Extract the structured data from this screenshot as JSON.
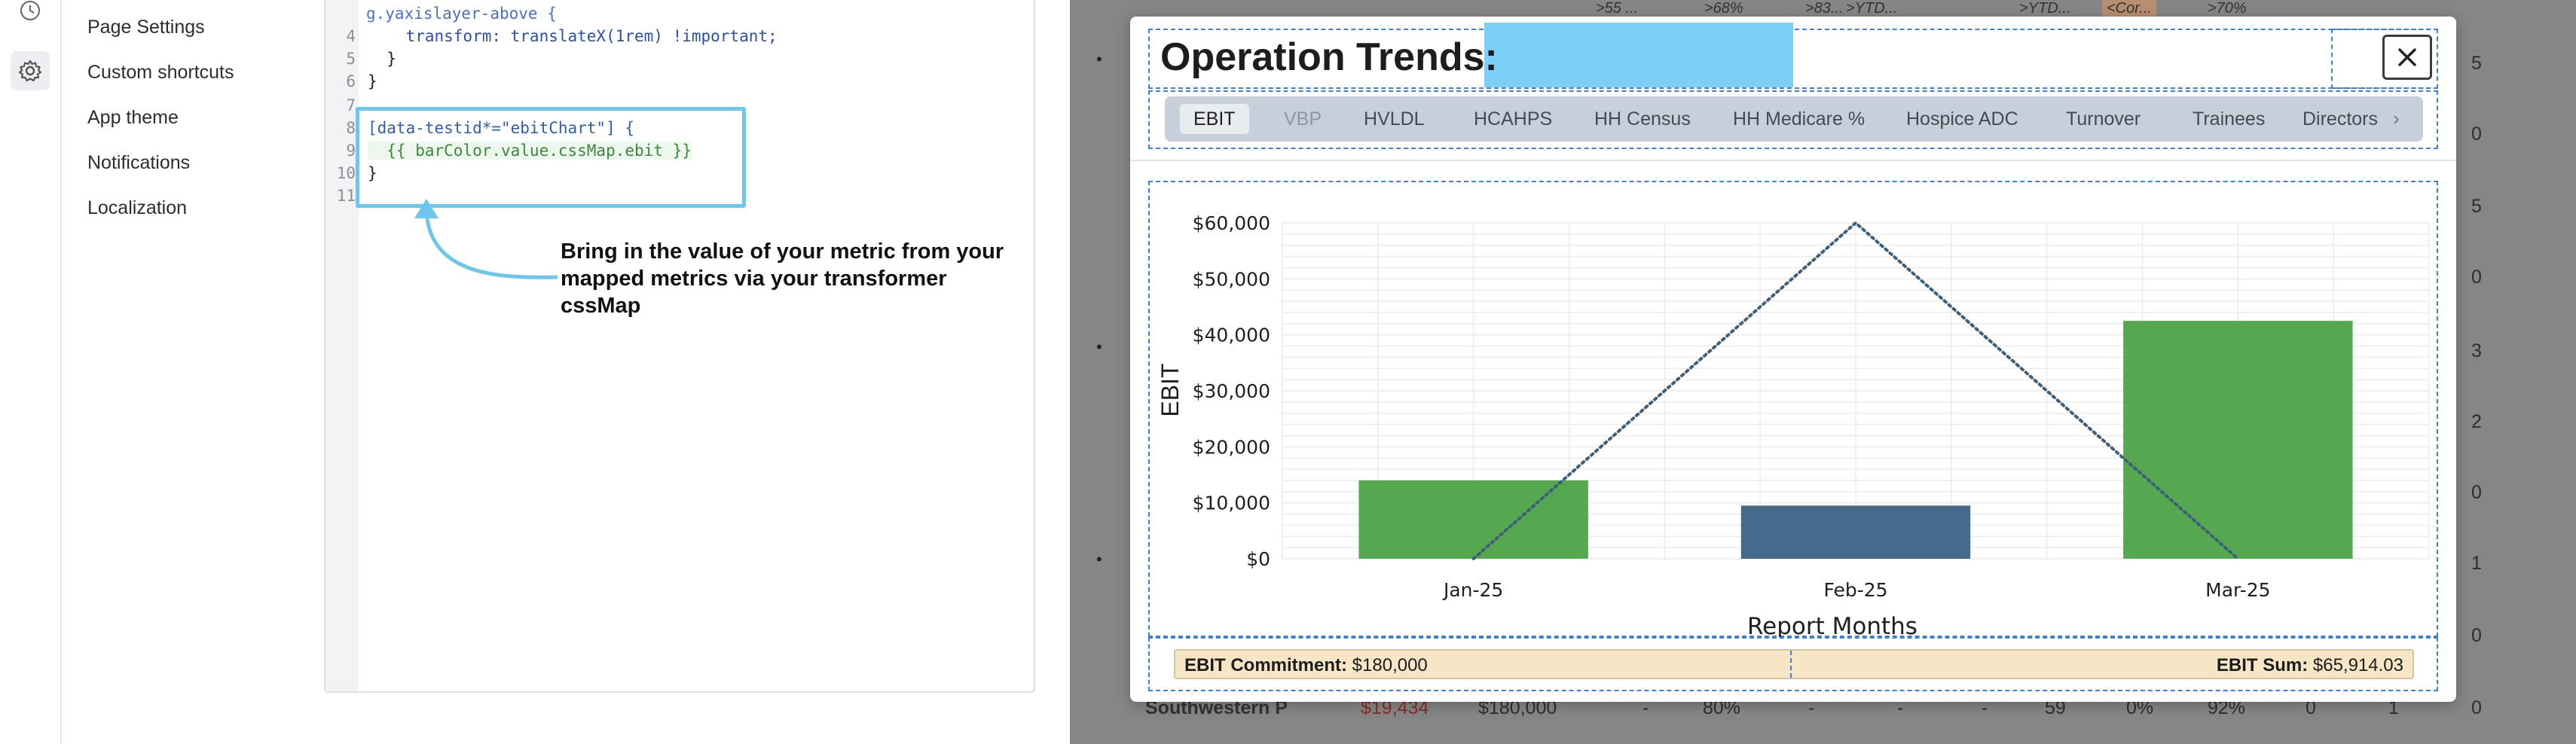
{
  "settings_nav": {
    "items": [
      "Page Settings",
      "Custom shortcuts",
      "App theme",
      "Notifications",
      "Localization"
    ]
  },
  "code_editor": {
    "lines": [
      {
        "n": "",
        "text": "g.yaxislayer-above {"
      },
      {
        "n": "4",
        "text": "    transform: translateX(1rem) !important;"
      },
      {
        "n": "5",
        "text": "  }"
      },
      {
        "n": "6",
        "text": "}"
      },
      {
        "n": "7",
        "text": ""
      },
      {
        "n": "8",
        "text": "[data-testid*=\"ebitChart\"] {"
      },
      {
        "n": "9",
        "text": "  {{ barColor.value.cssMap.ebit }}"
      },
      {
        "n": "10",
        "text": "}"
      },
      {
        "n": "11",
        "text": ""
      }
    ]
  },
  "annotation": {
    "text": "Bring in the value of your metric from your mapped metrics via your transformer cssMap"
  },
  "background_table": {
    "header_fragments": [
      ">55 ...",
      ">68%",
      ">83...",
      ">YTD...",
      ">YTD...",
      "<Cor...",
      ">70%"
    ],
    "row_counts": [
      "5",
      "0",
      "5",
      "0",
      "3",
      "2",
      "0",
      "1",
      "0",
      "0"
    ],
    "last_row": {
      "name": "Southwestern P",
      "v1": "$19,434",
      "v2": "$180,000",
      "v3": "-",
      "v4": "80%",
      "v5": "-",
      "v6": "-",
      "v7": "-",
      "v8": "59",
      "v9": "0%",
      "v10": "92%",
      "v11": "0",
      "v12": "1"
    }
  },
  "modal": {
    "title": "Operation Trends:",
    "close_icon": "close-icon",
    "tabs": [
      {
        "label": "EBIT",
        "state": "active"
      },
      {
        "label": "VBP",
        "state": "disabled"
      },
      {
        "label": "HVLDL",
        "state": "normal"
      },
      {
        "label": "HCAHPS",
        "state": "normal"
      },
      {
        "label": "HH Census",
        "state": "normal"
      },
      {
        "label": "HH Medicare %",
        "state": "normal"
      },
      {
        "label": "Hospice ADC",
        "state": "normal"
      },
      {
        "label": "Turnover",
        "state": "normal"
      },
      {
        "label": "Trainees",
        "state": "normal"
      },
      {
        "label": "Directors",
        "state": "normal"
      }
    ],
    "tab_next_glyph": "›",
    "footer": {
      "commitment_label": "EBIT Commitment:",
      "commitment_value": "$180,000",
      "sum_label": "EBIT Sum:",
      "sum_value": "$65,914.03"
    }
  },
  "chart_data": {
    "type": "bar",
    "categories": [
      "Jan-25",
      "Feb-25",
      "Mar-25"
    ],
    "series": [
      {
        "type": "bar",
        "values": [
          14000,
          9500,
          42500
        ],
        "colors": [
          "#55a84f",
          "#466b8a",
          "#55a84f"
        ]
      },
      {
        "type": "line",
        "style": "dotted",
        "color": "#3e5f7c",
        "values": [
          0,
          60000,
          0
        ]
      }
    ],
    "xlabel": "Report Months",
    "ylabel": "EBIT",
    "ylim": [
      0,
      60000
    ],
    "yticks": [
      0,
      10000,
      20000,
      30000,
      40000,
      50000,
      60000
    ],
    "ytick_labels": [
      "$0",
      "$10,000",
      "$20,000",
      "$30,000",
      "$40,000",
      "$50,000",
      "$60,000"
    ],
    "grid": true,
    "legend": "none"
  },
  "colors": {
    "highlight": "#6cc6ee",
    "redaction": "#7cd0f5",
    "dashed_outline": "#3f7fd6",
    "footer_bg": "#f6e6c6"
  }
}
